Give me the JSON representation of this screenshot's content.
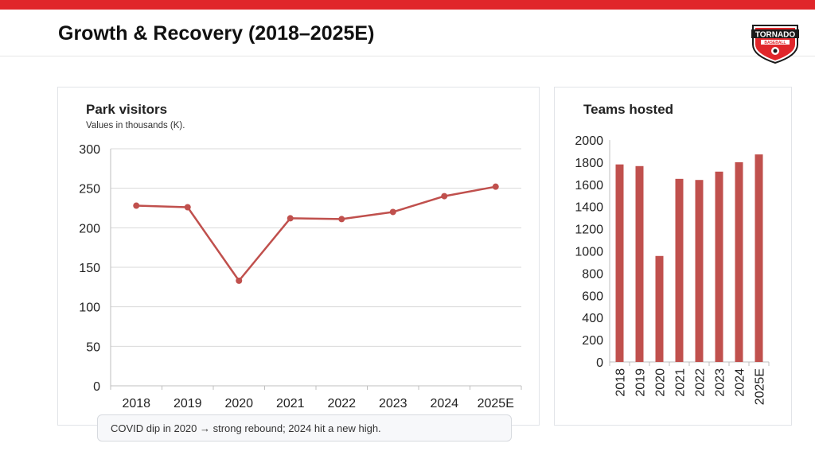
{
  "header": {
    "title": "Growth & Recovery (2018–2025E)"
  },
  "logo": {
    "text_top": "TORNADO",
    "text_bottom": "BASEBALL"
  },
  "colors": {
    "accent": "#e0262a",
    "series": "#c0504d"
  },
  "chart_data": [
    {
      "type": "line",
      "title": "Park visitors",
      "subtitle": "Values in thousands (K).",
      "categories": [
        "2018",
        "2019",
        "2020",
        "2021",
        "2022",
        "2023",
        "2024",
        "2025E"
      ],
      "values": [
        228,
        226,
        133,
        212,
        211,
        220,
        240,
        252
      ],
      "ylim": [
        0,
        300
      ],
      "yticks": [
        0,
        50,
        100,
        150,
        200,
        250,
        300
      ],
      "grid": true
    },
    {
      "type": "bar",
      "title": "Teams hosted",
      "categories": [
        "2018",
        "2019",
        "2020",
        "2021",
        "2022",
        "2023",
        "2024",
        "2025E"
      ],
      "values": [
        1780,
        1765,
        955,
        1650,
        1640,
        1715,
        1800,
        1870
      ],
      "ylim": [
        0,
        2000
      ],
      "yticks": [
        0,
        200,
        400,
        600,
        800,
        1000,
        1200,
        1400,
        1600,
        1800,
        2000
      ],
      "grid": false
    }
  ],
  "note": {
    "text": "COVID dip in 2020 → strong rebound; 2024 hit a new high."
  }
}
